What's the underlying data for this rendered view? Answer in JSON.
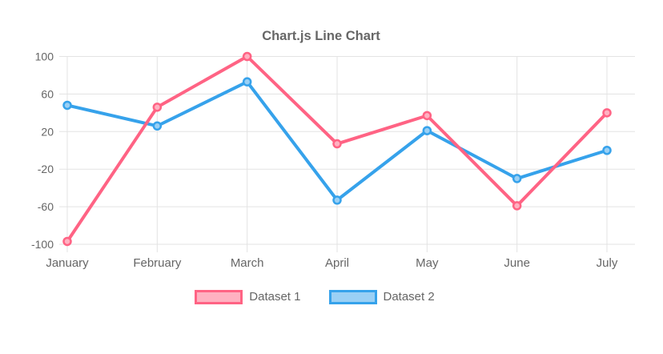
{
  "chart_data": {
    "type": "line",
    "title": "Chart.js Line Chart",
    "categories": [
      "January",
      "February",
      "March",
      "April",
      "May",
      "June",
      "July"
    ],
    "series": [
      {
        "name": "Dataset 1",
        "values": [
          -97,
          46,
          100,
          7,
          37,
          -59,
          40
        ],
        "line_color": "#ff6384",
        "fill_color": "#ffb1c1"
      },
      {
        "name": "Dataset 2",
        "values": [
          48,
          26,
          73,
          -53,
          21,
          -30,
          0
        ],
        "line_color": "#36a2eb",
        "fill_color": "#9ad0f5"
      }
    ],
    "y_ticks": [
      100,
      60,
      20,
      -20,
      -60,
      -100
    ],
    "ylim": [
      -100,
      100
    ],
    "grid": true,
    "legend_position": "bottom",
    "axis_text_color": "#666666",
    "grid_color": "#e3e3e3"
  }
}
